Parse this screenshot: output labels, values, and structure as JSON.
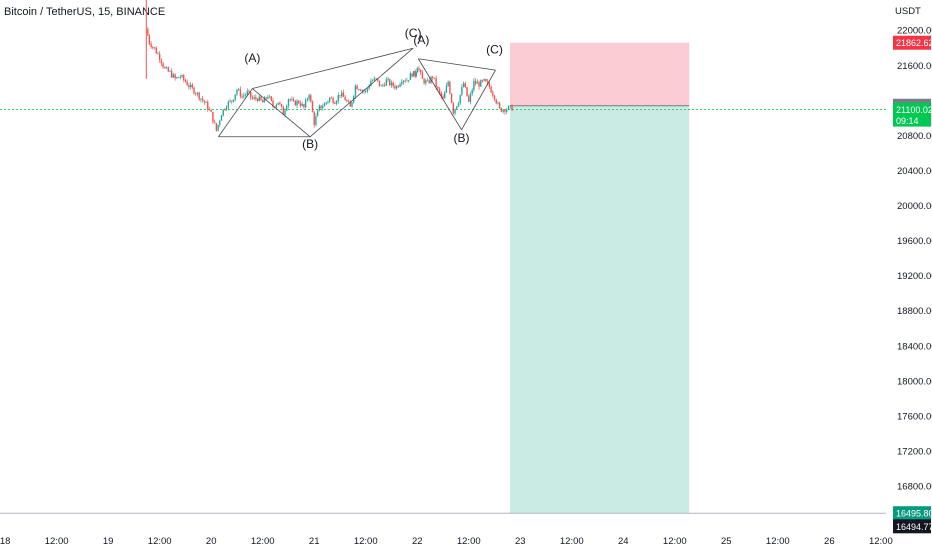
{
  "chart_data": {
    "type": "line",
    "title": "Bitcoin / TetherUS, 15, BINANCE",
    "currency_label": "USDT",
    "y_ticks": [
      22000,
      21600,
      20800,
      20400,
      20000,
      19600,
      19200,
      18800,
      18400,
      18000,
      17600,
      17200,
      16800
    ],
    "y_tick_labels": [
      "22000.00",
      "21600.00",
      "20800.00",
      "20400.00",
      "20000.00",
      "19600.00",
      "19200.00",
      "18800.00",
      "18400.00",
      "18000.00",
      "17600.00",
      "17200.00",
      "16800.00"
    ],
    "ylim": [
      16350,
      22350
    ],
    "x_ticks": [
      {
        "label": "18",
        "day": 18.0
      },
      {
        "label": "12:00",
        "day": 18.5
      },
      {
        "label": "19",
        "day": 19.0
      },
      {
        "label": "12:00",
        "day": 19.5
      },
      {
        "label": "20",
        "day": 20.0
      },
      {
        "label": "12:00",
        "day": 20.5
      },
      {
        "label": "21",
        "day": 21.0
      },
      {
        "label": "12:00",
        "day": 21.5
      },
      {
        "label": "22",
        "day": 22.0
      },
      {
        "label": "12:00",
        "day": 22.5
      },
      {
        "label": "23",
        "day": 23.0
      },
      {
        "label": "12:00",
        "day": 23.5
      },
      {
        "label": "24",
        "day": 24.0
      },
      {
        "label": "12:00",
        "day": 24.5
      },
      {
        "label": "25",
        "day": 25.0
      },
      {
        "label": "12:00",
        "day": 25.5
      },
      {
        "label": "26",
        "day": 26.0
      },
      {
        "label": "12:00",
        "day": 26.5
      }
    ],
    "xlim": [
      17.95,
      26.55
    ],
    "series": [
      {
        "x": [
          19.37,
          19.4,
          19.45,
          19.5,
          19.55,
          19.6,
          19.65,
          19.7,
          19.75,
          19.8,
          19.85,
          19.9,
          19.95,
          20.0,
          20.05,
          20.1,
          20.15,
          20.2,
          20.25,
          20.3,
          20.35,
          20.4,
          20.45,
          20.5,
          20.55,
          20.6,
          20.65,
          20.7,
          20.75,
          20.8,
          20.85,
          20.9,
          20.95,
          21.0,
          21.05,
          21.1,
          21.15,
          21.2,
          21.25,
          21.3,
          21.35,
          21.4,
          21.45,
          21.5,
          21.55,
          21.6,
          21.65,
          21.7,
          21.75,
          21.8,
          21.85,
          21.9,
          21.95,
          21.98,
          22.0,
          22.05,
          22.1,
          22.15,
          22.2,
          22.25,
          22.3,
          22.35,
          22.4,
          22.45,
          22.5,
          22.55,
          22.6,
          22.65,
          22.7,
          22.75,
          22.8,
          22.92
        ],
        "y": [
          22020,
          21870,
          21790,
          21700,
          21560,
          21520,
          21450,
          21480,
          21420,
          21350,
          21300,
          21230,
          21160,
          21050,
          20860,
          21060,
          21160,
          21200,
          21330,
          21250,
          21290,
          21220,
          21230,
          21180,
          21260,
          21140,
          21190,
          21060,
          21230,
          21170,
          21190,
          21120,
          21290,
          20950,
          21120,
          21160,
          21230,
          21200,
          21280,
          21220,
          21120,
          21370,
          21340,
          21300,
          21430,
          21440,
          21360,
          21430,
          21380,
          21360,
          21450,
          21440,
          21510,
          21500,
          21600,
          21440,
          21400,
          21480,
          21320,
          21210,
          21420,
          21080,
          21200,
          21400,
          21180,
          21410,
          21390,
          21420,
          21360,
          21250,
          21100,
          21120
        ]
      }
    ],
    "wave_labels": [
      {
        "text": "(A)",
        "x": 20.4,
        "y": 21640
      },
      {
        "text": "(B)",
        "x": 20.96,
        "y": 20660
      },
      {
        "text": "(C)",
        "x": 21.96,
        "y": 21930
      },
      {
        "text": "(A)",
        "x": 22.04,
        "y": 21850
      },
      {
        "text": "(B)",
        "x": 22.43,
        "y": 20730
      },
      {
        "text": "(C)",
        "x": 22.75,
        "y": 21740
      }
    ],
    "wave_lines": [
      {
        "from": [
          20.07,
          20.79
        ],
        "to": [
          20.4,
          21.34
        ]
      },
      {
        "from": [
          20.07,
          20.79
        ],
        "to": [
          20.96,
          20.79
        ]
      },
      {
        "from": [
          20.4,
          21.34
        ],
        "to": [
          20.96,
          20.79
        ]
      },
      {
        "from": [
          20.4,
          21.34
        ],
        "to": [
          21.96,
          21.8
        ]
      },
      {
        "from": [
          20.96,
          20.79
        ],
        "to": [
          21.96,
          21.8
        ]
      },
      {
        "from": [
          22.01,
          21.68
        ],
        "to": [
          22.43,
          20.87
        ]
      },
      {
        "from": [
          22.01,
          21.68
        ],
        "to": [
          22.76,
          21.55
        ]
      },
      {
        "from": [
          22.43,
          20.87
        ],
        "to": [
          22.76,
          21.55
        ]
      }
    ],
    "position": {
      "x_start": 22.9,
      "x_end": 24.64,
      "entry": 21143.47,
      "stop": 21862.62,
      "target": 16495.8
    },
    "current_price": 21100.02,
    "current_price_sub": "09:14",
    "badges": [
      {
        "label": "21862.62",
        "value": 21862.62,
        "color": "#f23645"
      },
      {
        "label": "21143.47",
        "value": 21143.47,
        "color": "#787b86"
      },
      {
        "label": "21100.02",
        "value": 21100.02,
        "color": "#00c853"
      },
      {
        "label": "16495.80",
        "value": 16495.8,
        "color": "#089981"
      },
      {
        "label": "16494.77",
        "value": 16494.77,
        "color": "#131722"
      }
    ],
    "colors": {
      "up": "#26a69a",
      "down": "#ef5350",
      "stop_zone": "#f9cdd3",
      "target_zone": "#c9ebe3",
      "current_line": "#22c55e",
      "wave_line": "#434651"
    },
    "grid": false
  }
}
